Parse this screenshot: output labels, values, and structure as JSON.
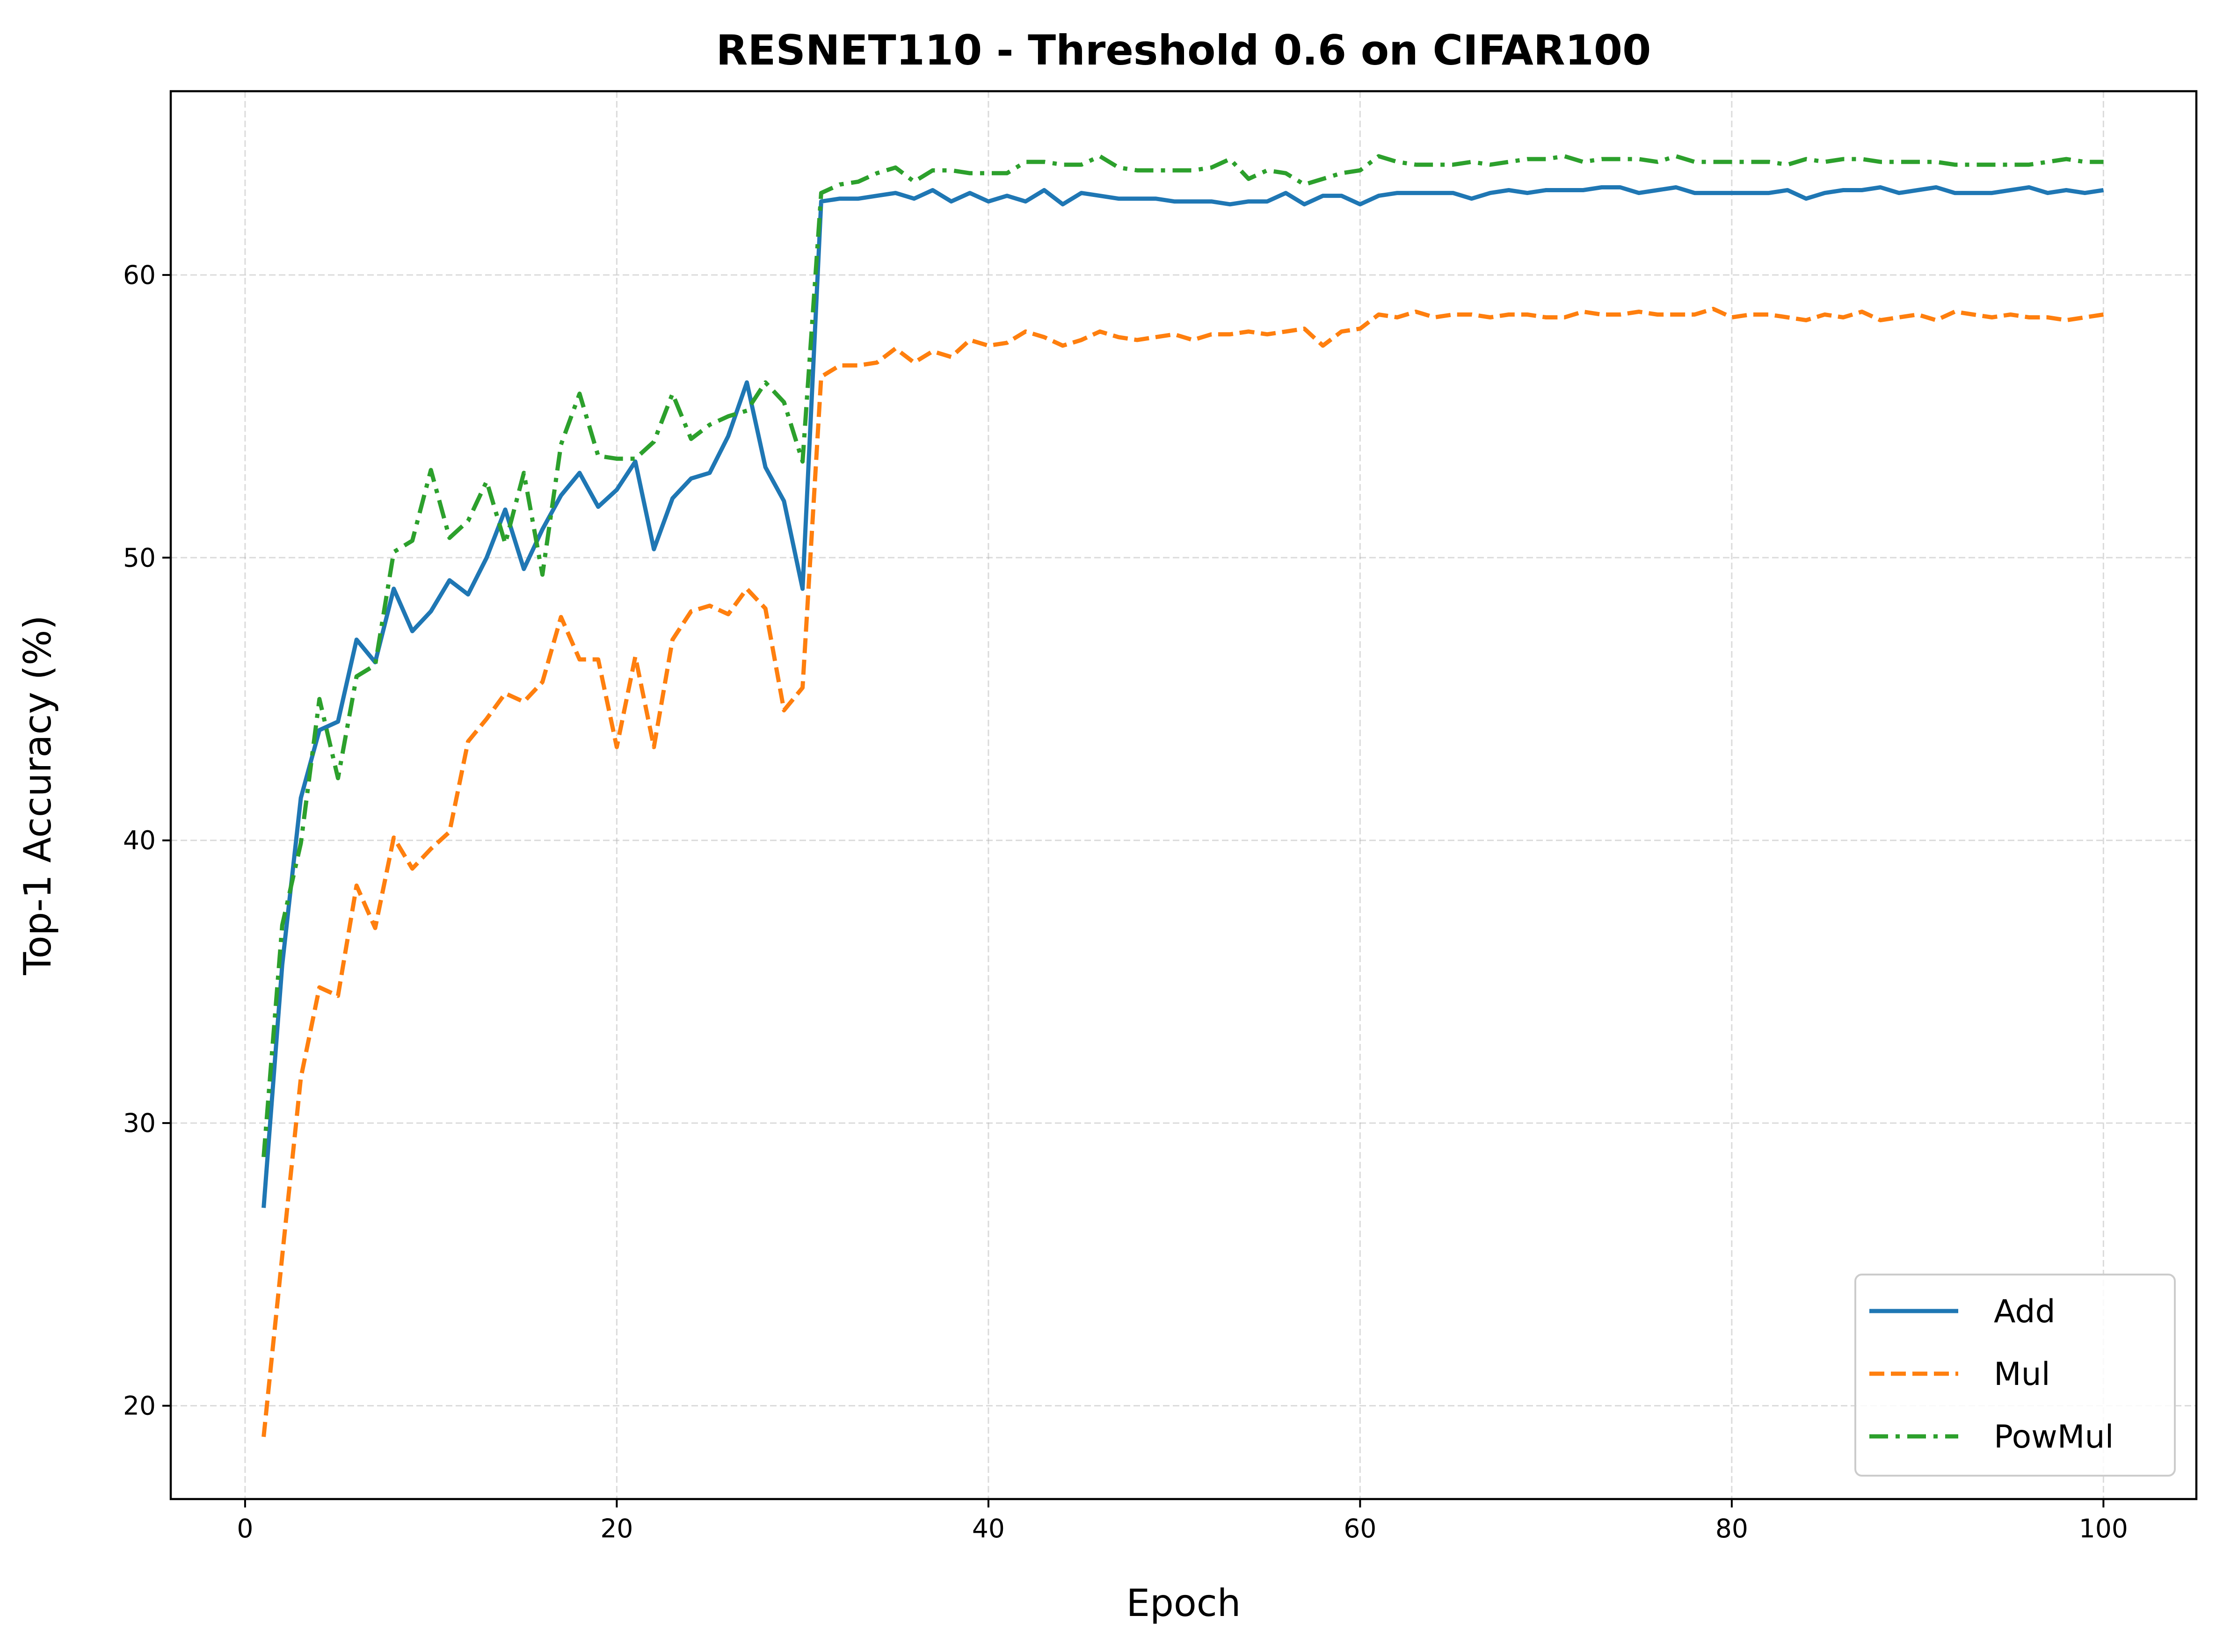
{
  "chart_data": {
    "type": "line",
    "title": "RESNET110 - Threshold 0.6 on CIFAR100",
    "xlabel": "Epoch",
    "ylabel": "Top-1 Accuracy (%)",
    "xlim": [
      -4,
      105
    ],
    "ylim": [
      16.7,
      66.5
    ],
    "xticks": [
      0,
      20,
      40,
      60,
      80,
      100
    ],
    "yticks": [
      20,
      30,
      40,
      50,
      60
    ],
    "grid": true,
    "legend_position": "lower-right",
    "x_start": 1,
    "series": [
      {
        "name": "Add",
        "color": "#1f77b4",
        "style": "solid",
        "values": [
          27.0,
          35.6,
          41.5,
          43.9,
          44.2,
          47.1,
          46.3,
          48.9,
          47.4,
          48.1,
          49.2,
          48.7,
          50.0,
          51.7,
          49.6,
          51.0,
          52.2,
          53.0,
          51.8,
          52.4,
          53.4,
          50.3,
          52.1,
          52.8,
          53.0,
          54.3,
          56.2,
          53.2,
          52.0,
          48.9,
          62.6,
          62.7,
          62.7,
          62.8,
          62.9,
          62.7,
          63.0,
          62.6,
          62.9,
          62.6,
          62.8,
          62.6,
          63.0,
          62.5,
          62.9,
          62.8,
          62.7,
          62.7,
          62.7,
          62.6,
          62.6,
          62.6,
          62.5,
          62.6,
          62.6,
          62.9,
          62.5,
          62.8,
          62.8,
          62.5,
          62.8,
          62.9,
          62.9,
          62.9,
          62.9,
          62.7,
          62.9,
          63.0,
          62.9,
          63.0,
          63.0,
          63.0,
          63.1,
          63.1,
          62.9,
          63.0,
          63.1,
          62.9,
          62.9,
          62.9,
          62.9,
          62.9,
          63.0,
          62.7,
          62.9,
          63.0,
          63.0,
          63.1,
          62.9,
          63.0,
          63.1,
          62.9,
          62.9,
          62.9,
          63.0,
          63.1,
          62.9,
          63.0,
          62.9,
          63.0
        ]
      },
      {
        "name": "Mul",
        "color": "#ff7f0e",
        "style": "dashed",
        "values": [
          18.9,
          25.3,
          31.6,
          34.8,
          34.5,
          38.4,
          36.9,
          40.1,
          39.0,
          39.7,
          40.3,
          43.5,
          44.3,
          45.2,
          44.9,
          45.6,
          47.9,
          46.4,
          46.4,
          43.3,
          46.5,
          43.3,
          47.1,
          48.1,
          48.3,
          48.0,
          48.9,
          48.2,
          44.6,
          45.4,
          56.4,
          56.8,
          56.8,
          56.9,
          57.4,
          56.9,
          57.3,
          57.1,
          57.7,
          57.5,
          57.6,
          58.0,
          57.8,
          57.5,
          57.7,
          58.0,
          57.8,
          57.7,
          57.8,
          57.9,
          57.7,
          57.9,
          57.9,
          58.0,
          57.9,
          58.0,
          58.1,
          57.5,
          58.0,
          58.1,
          58.6,
          58.5,
          58.7,
          58.5,
          58.6,
          58.6,
          58.5,
          58.6,
          58.6,
          58.5,
          58.5,
          58.7,
          58.6,
          58.6,
          58.7,
          58.6,
          58.6,
          58.6,
          58.8,
          58.5,
          58.6,
          58.6,
          58.5,
          58.4,
          58.6,
          58.5,
          58.7,
          58.4,
          58.5,
          58.6,
          58.4,
          58.7,
          58.6,
          58.5,
          58.6,
          58.5,
          58.5,
          58.4,
          58.5,
          58.6
        ]
      },
      {
        "name": "PowMul",
        "color": "#2ca02c",
        "style": "dashdot",
        "values": [
          28.8,
          37.0,
          39.9,
          45.0,
          42.2,
          45.8,
          46.2,
          50.2,
          50.6,
          53.1,
          50.7,
          51.3,
          52.7,
          50.5,
          53.0,
          49.4,
          54.0,
          55.8,
          53.6,
          53.5,
          53.5,
          54.1,
          55.8,
          54.2,
          54.7,
          55.0,
          55.2,
          56.2,
          55.5,
          53.4,
          62.9,
          63.2,
          63.3,
          63.6,
          63.8,
          63.3,
          63.7,
          63.7,
          63.6,
          63.6,
          63.6,
          64.0,
          64.0,
          63.9,
          63.9,
          64.2,
          63.8,
          63.7,
          63.7,
          63.7,
          63.7,
          63.8,
          64.1,
          63.4,
          63.7,
          63.6,
          63.2,
          63.4,
          63.6,
          63.7,
          64.2,
          64.0,
          63.9,
          63.9,
          63.9,
          64.0,
          63.9,
          64.0,
          64.1,
          64.1,
          64.2,
          64.0,
          64.1,
          64.1,
          64.1,
          64.0,
          64.2,
          64.0,
          64.0,
          64.0,
          64.0,
          64.0,
          63.9,
          64.1,
          64.0,
          64.1,
          64.1,
          64.0,
          64.0,
          64.0,
          64.0,
          63.9,
          63.9,
          63.9,
          63.9,
          63.9,
          64.0,
          64.1,
          64.0,
          64.0
        ]
      }
    ]
  }
}
